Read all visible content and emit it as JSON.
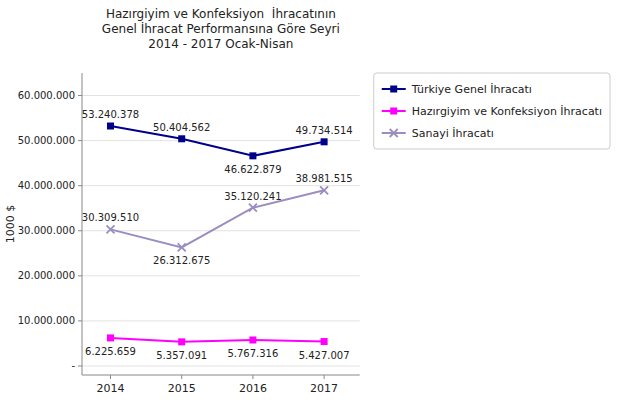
{
  "chart_data": {
    "type": "line",
    "title": "Hazırgiyim ve Konfeksiyon  İhracatının\nGenel İhracat Performansına Göre Seyri\n2014 - 2017 Ocak-Nisan",
    "ylabel": "1000 $",
    "x": [
      2014,
      2015,
      2016,
      2017
    ],
    "xlim": [
      2013.6,
      2017.5
    ],
    "xticks": [
      2014,
      2015,
      2016,
      2017
    ],
    "ylim": [
      -2000000,
      65000000
    ],
    "yticks": [
      {
        "value": 0,
        "label": "-"
      },
      {
        "value": 10000000,
        "label": "10.000.000"
      },
      {
        "value": 20000000,
        "label": "20.000.000"
      },
      {
        "value": 30000000,
        "label": "30.000.000"
      },
      {
        "value": 40000000,
        "label": "40.000.000"
      },
      {
        "value": 50000000,
        "label": "50.000.000"
      },
      {
        "value": 60000000,
        "label": "60.000.000"
      }
    ],
    "grid": true,
    "legend": "right",
    "data_labels": true,
    "series": [
      {
        "name": "Türkiye Genel İhracatı",
        "color": "#00008B",
        "marker": "square",
        "values": [
          53240378,
          50404562,
          46622879,
          49734514
        ],
        "value_labels": [
          "53.240.378",
          "50.404.562",
          "46.622.879",
          "49.734.514"
        ]
      },
      {
        "name": "Hazırgiyim ve Konfeksiyon İhracatı",
        "color": "#FF00FF",
        "marker": "square",
        "values": [
          6225659,
          5357091,
          5767316,
          5427007
        ],
        "value_labels": [
          "6.225.659",
          "5.357.091",
          "5.767.316",
          "5.427.007"
        ]
      },
      {
        "name": "Sanayi İhracatı",
        "color": "#9B8DC0",
        "marker": "x",
        "values": [
          30309510,
          26312675,
          35120241,
          38981515
        ],
        "value_labels": [
          "30.309.510",
          "26.312.675",
          "35.120.241",
          "38.981.515"
        ]
      }
    ]
  }
}
